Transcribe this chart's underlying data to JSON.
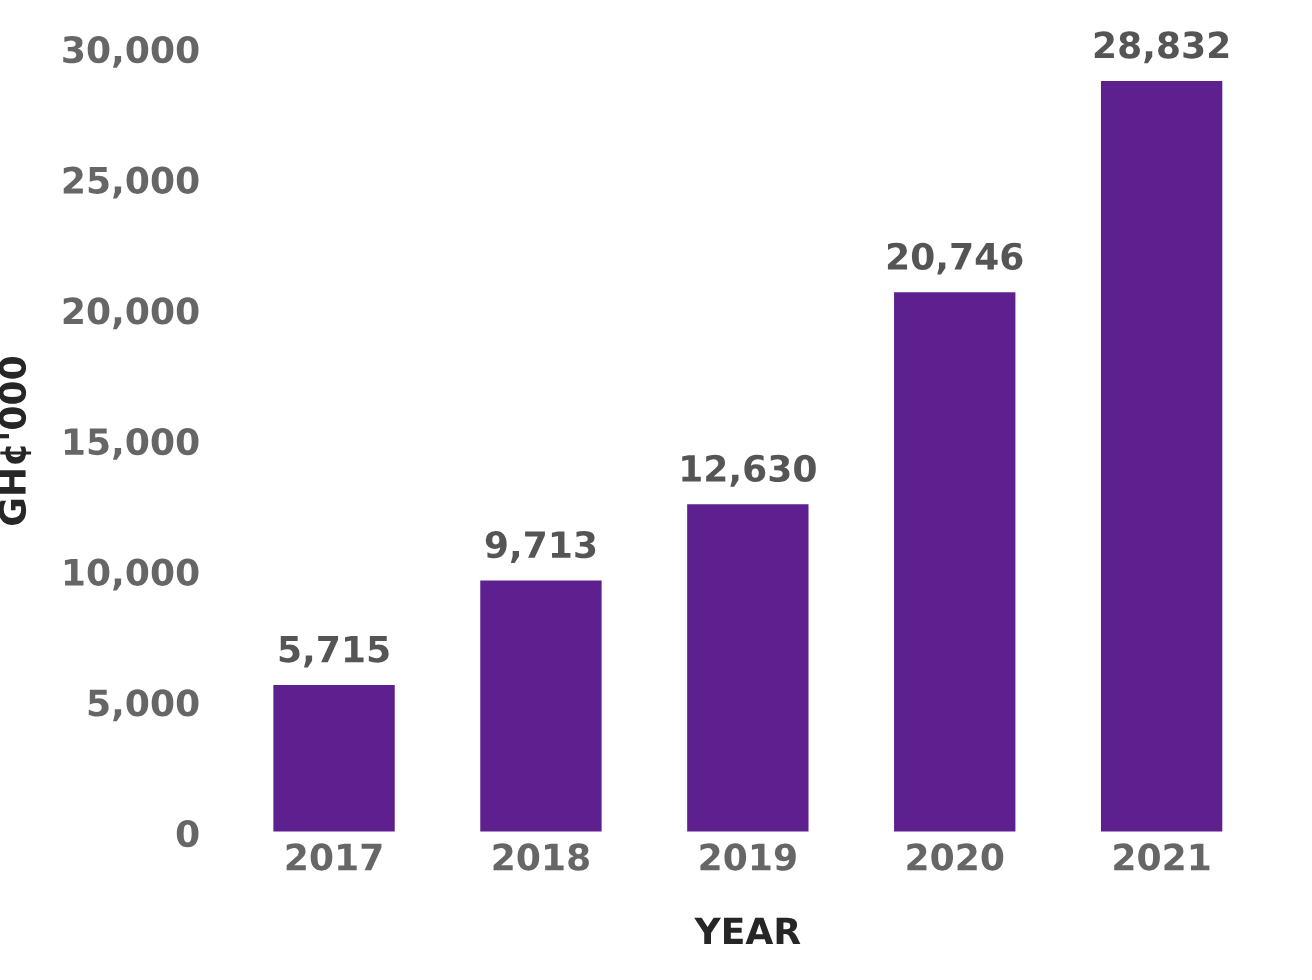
{
  "chart_data": {
    "type": "bar",
    "xlabel": "YEAR",
    "ylabel": "GH¢'000",
    "categories": [
      "2017",
      "2018",
      "2019",
      "2020",
      "2021"
    ],
    "values": [
      5715,
      9713,
      12630,
      20746,
      28832
    ],
    "value_labels": [
      "5,715",
      "9,713",
      "12,630",
      "20,746",
      "28,832"
    ],
    "color": "#5e1f8f",
    "ylim": [
      0,
      30000
    ],
    "yticks": [
      {
        "value": 0,
        "label": "0"
      },
      {
        "value": 5000,
        "label": "5,000"
      },
      {
        "value": 10000,
        "label": "10,000"
      },
      {
        "value": 15000,
        "label": "15,000"
      },
      {
        "value": 20000,
        "label": "20,000"
      },
      {
        "value": 25000,
        "label": "25,000"
      },
      {
        "value": 30000,
        "label": "30,000"
      }
    ],
    "grid": false,
    "legend": false
  }
}
